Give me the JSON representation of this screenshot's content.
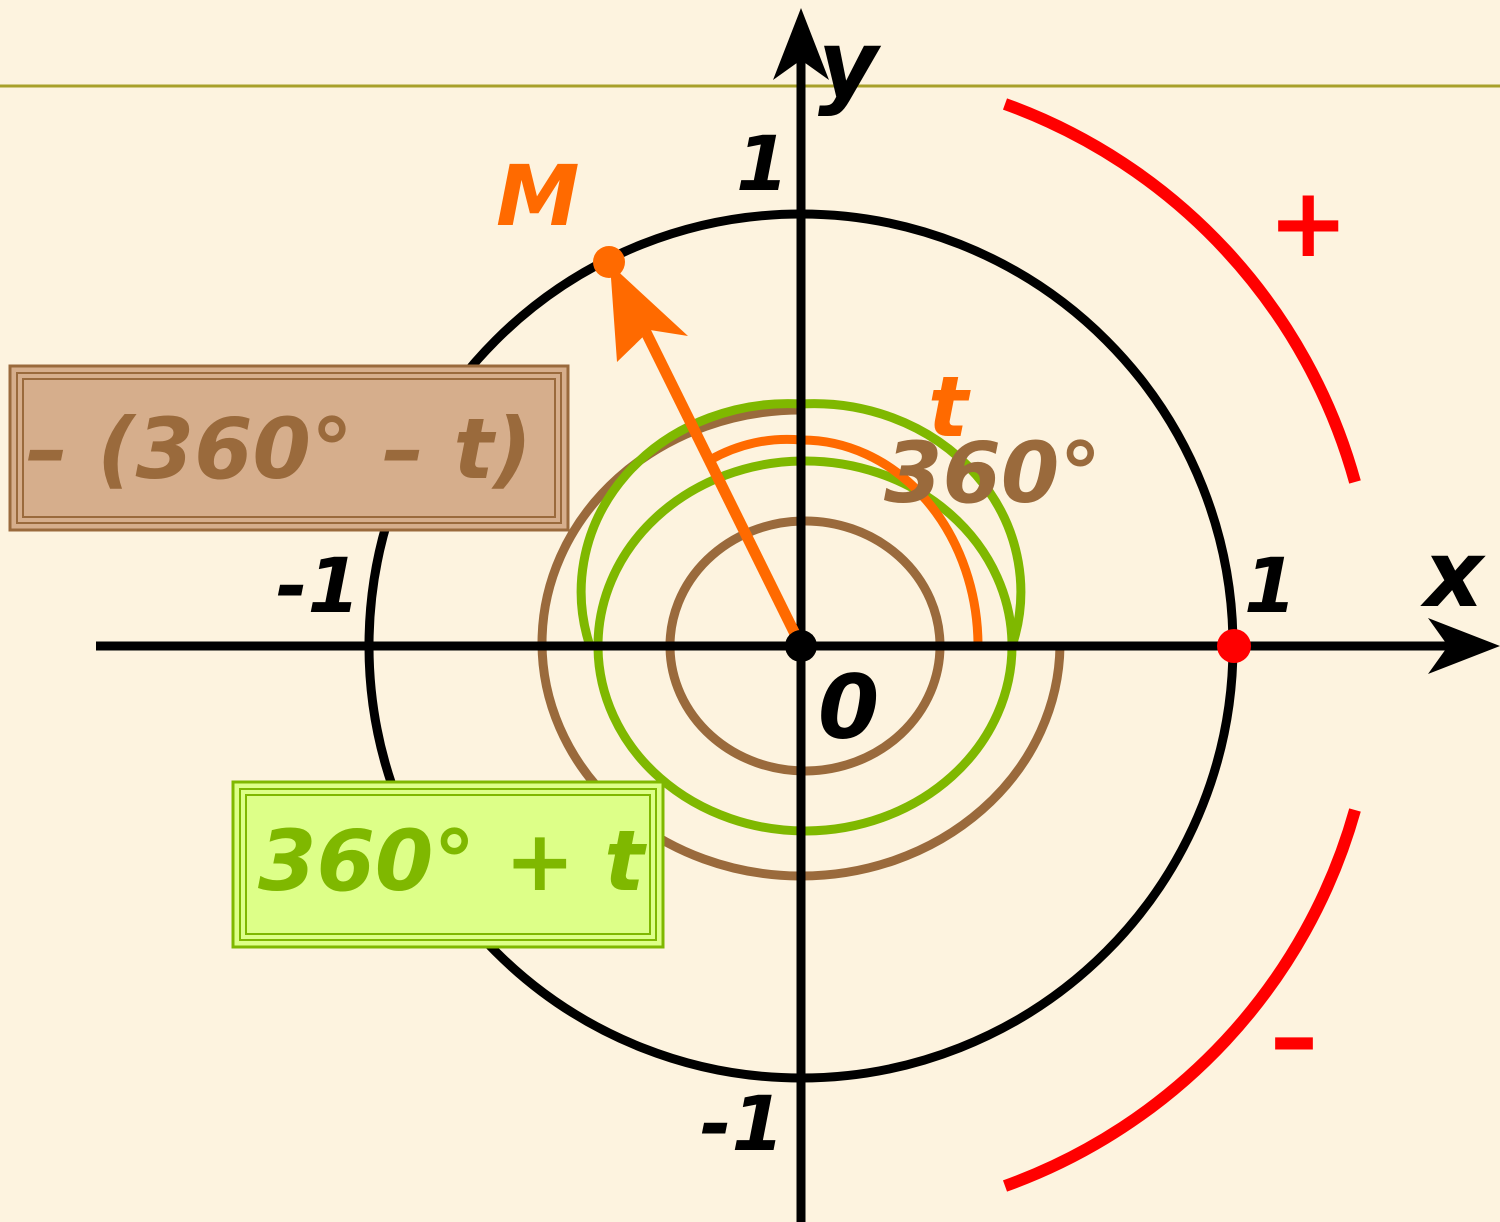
{
  "colors": {
    "background": "#fdf3df",
    "header_rule": "#a8a02a",
    "axes": "#000000",
    "circle": "#000000",
    "point_m": "#ff6a00",
    "angle_t": "#ff6a00",
    "full_turn": "#9a6a3c",
    "positive_turn": "#7fb800",
    "sign_arc": "#ff0000",
    "box_negative_fill": "#d6ae8c",
    "box_negative_border": "#9a6a3c",
    "box_positive_fill": "#ddff88",
    "box_positive_border": "#7fb800"
  },
  "axes": {
    "x_label": "x",
    "y_label": "y",
    "origin_label": "0",
    "x_pos_tick": "1",
    "x_neg_tick": "-1",
    "y_pos_tick": "1",
    "y_neg_tick": "-1"
  },
  "point": {
    "label": "M"
  },
  "angles": {
    "t_label": "t",
    "full_label": "360°",
    "negative_expr": "– (360° – t)",
    "positive_expr": "360° + t"
  },
  "signs": {
    "plus": "+",
    "minus": "–"
  }
}
